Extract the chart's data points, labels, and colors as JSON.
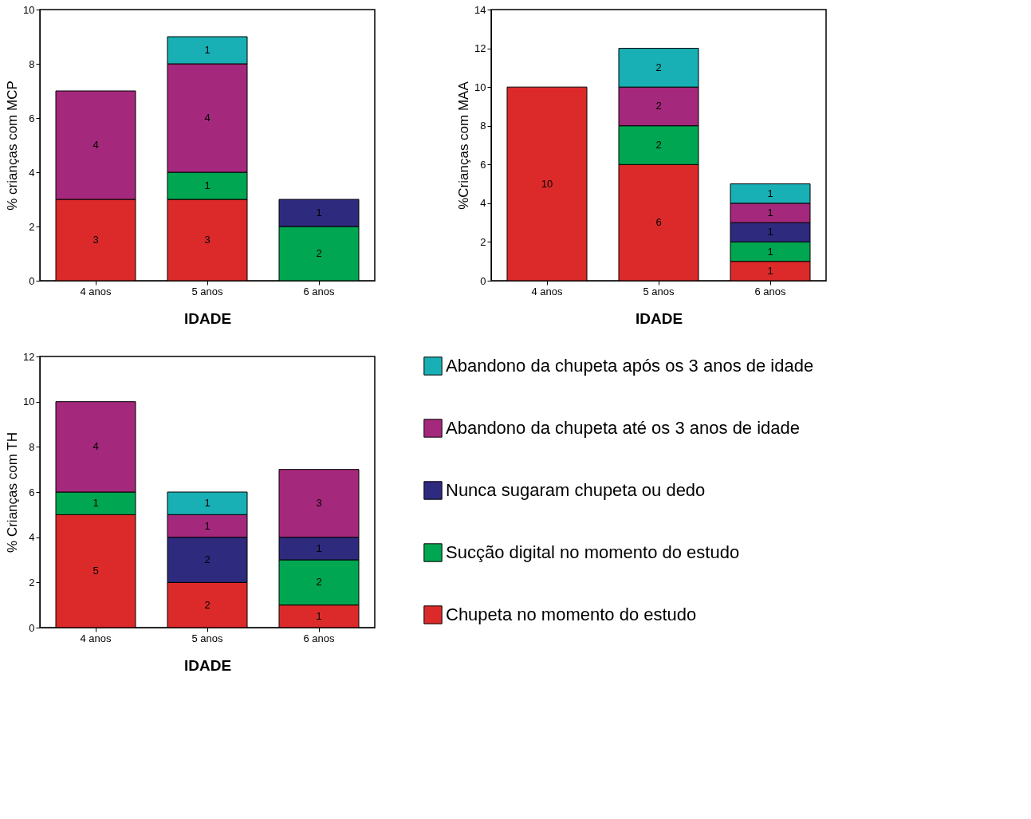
{
  "chart_data": [
    {
      "type": "bar",
      "stacked": true,
      "data_labels": true,
      "xlabel": "IDADE",
      "ylabel": "% crianças com MCP",
      "categories": [
        "4 anos",
        "5 anos",
        "6 anos"
      ],
      "ylim": [
        0,
        10
      ],
      "yticks": [
        0,
        2,
        4,
        6,
        8,
        10
      ],
      "series": [
        {
          "color": "#dc2a2a",
          "values": [
            3,
            3,
            null
          ]
        },
        {
          "color": "#00a651",
          "values": [
            null,
            1,
            2
          ]
        },
        {
          "color": "#2e2a7e",
          "values": [
            null,
            null,
            1
          ]
        },
        {
          "color": "#a4287b",
          "values": [
            4,
            4,
            null
          ]
        },
        {
          "color": "#18b0b5",
          "values": [
            null,
            1,
            null
          ]
        }
      ]
    },
    {
      "type": "bar",
      "stacked": true,
      "data_labels": true,
      "xlabel": "IDADE",
      "ylabel": "%Crianças com MAA",
      "categories": [
        "4 anos",
        "5 anos",
        "6 anos"
      ],
      "ylim": [
        0,
        14
      ],
      "yticks": [
        0,
        2,
        4,
        6,
        8,
        10,
        12,
        14
      ],
      "series": [
        {
          "color": "#dc2a2a",
          "values": [
            10,
            6,
            1
          ]
        },
        {
          "color": "#00a651",
          "values": [
            null,
            2,
            1
          ]
        },
        {
          "color": "#2e2a7e",
          "values": [
            null,
            null,
            1
          ]
        },
        {
          "color": "#a4287b",
          "values": [
            null,
            2,
            1
          ]
        },
        {
          "color": "#18b0b5",
          "values": [
            null,
            2,
            1
          ]
        }
      ]
    },
    {
      "type": "bar",
      "stacked": true,
      "data_labels": true,
      "legend": "right",
      "xlabel": "IDADE",
      "ylabel": "% Crianças com TH",
      "categories": [
        "4 anos",
        "5 anos",
        "6 anos"
      ],
      "ylim": [
        0,
        12
      ],
      "yticks": [
        0,
        2,
        4,
        6,
        8,
        10,
        12
      ],
      "series": [
        {
          "name": "Chupeta no momento do estudo",
          "color": "#dc2a2a",
          "values": [
            5,
            2,
            1
          ]
        },
        {
          "name": "Sucção  digital no momento do estudo",
          "color": "#00a651",
          "values": [
            1,
            null,
            2
          ]
        },
        {
          "name": "Nunca sugaram chupeta ou dedo",
          "color": "#2e2a7e",
          "values": [
            null,
            2,
            1
          ]
        },
        {
          "name": "Abandono da chupeta até os 3 anos de idade",
          "color": "#a4287b",
          "values": [
            4,
            1,
            3
          ]
        },
        {
          "name": "Abandono da chupeta após os 3 anos de idade",
          "color": "#18b0b5",
          "values": [
            null,
            1,
            null
          ]
        }
      ]
    }
  ]
}
